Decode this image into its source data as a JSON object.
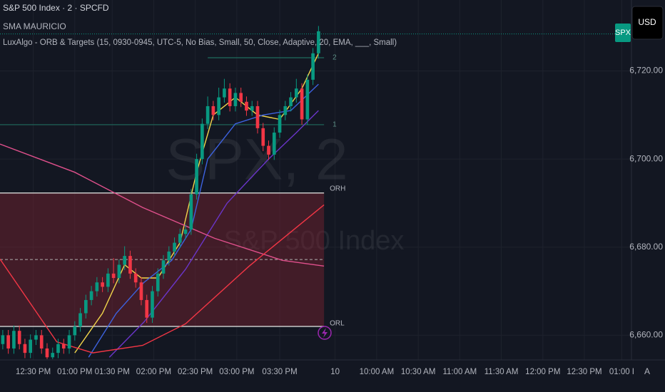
{
  "chart_data": {
    "type": "candlestick",
    "title": "S&P 500 Index · 2 · SPCFD",
    "indicator_legend": [
      "SMA MAURICIO",
      "LuxAlgo - ORB & Targets (15, 0930-0945, UTC-5, No Bias, Small, 50, Close, Adaptive, 20, EMA, ___, Small)"
    ],
    "watermark": "SPX, 2",
    "watermark_subtitle": "S&P 500 Index",
    "symbol_tag": "SPX",
    "currency": "USD",
    "auto_scale": "A",
    "up_color": "#089981",
    "down_color": "#f23645",
    "x": [
      -22,
      -18,
      -14,
      -10,
      -6,
      -2,
      2,
      6,
      10,
      14,
      18,
      22,
      26,
      30,
      34,
      38,
      42,
      46,
      50,
      54,
      58,
      62,
      66,
      70,
      74,
      78,
      82,
      86,
      90,
      94,
      98,
      102,
      106,
      110,
      114,
      118,
      122,
      126,
      130,
      134,
      138,
      142,
      146,
      150,
      154,
      158,
      162,
      166,
      170,
      174,
      178,
      182,
      186,
      190,
      194,
      198,
      202,
      206
    ],
    "ohlc": [
      [
        6658,
        6661.2,
        6656.8,
        6660
      ],
      [
        6660,
        6661.2,
        6655.8,
        6657
      ],
      [
        6657,
        6662.2,
        6655.8,
        6661
      ],
      [
        6661,
        6662.2,
        6656.8,
        6658
      ],
      [
        6658,
        6659.2,
        6654.8,
        6656
      ],
      [
        6656,
        6660.2,
        6654.8,
        6659
      ],
      [
        6659,
        6661.2,
        6657.8,
        6660
      ],
      [
        6660,
        6661.2,
        6655.8,
        6657
      ],
      [
        6657,
        6658.2,
        6654.6,
        6655
      ],
      [
        6655,
        6657.2,
        6654.6,
        6656
      ],
      [
        6656,
        6659.2,
        6654.8,
        6658
      ],
      [
        6658,
        6659.2,
        6655.8,
        6657
      ],
      [
        6657,
        6661.2,
        6655.8,
        6660
      ],
      [
        6660,
        6663.2,
        6658.8,
        6662
      ],
      [
        6662,
        6666.2,
        6660.8,
        6665
      ],
      [
        6665,
        6669.2,
        6663.8,
        6668
      ],
      [
        6668,
        6671.2,
        6666.8,
        6670
      ],
      [
        6670,
        6673.2,
        6668.8,
        6672
      ],
      [
        6672,
        6673.2,
        6669.8,
        6671
      ],
      [
        6671,
        6675.2,
        6669.8,
        6674
      ],
      [
        6674,
        6677.5,
        6671.8,
        6673
      ],
      [
        6673,
        6677.2,
        6671.8,
        6676
      ],
      [
        6676,
        6680.2,
        6674.8,
        6678
      ],
      [
        6678,
        6679.2,
        6672.8,
        6674
      ],
      [
        6674,
        6675.2,
        6670.8,
        6672
      ],
      [
        6672,
        6673.2,
        6666.8,
        6668
      ],
      [
        6668,
        6669.2,
        6662.8,
        6664
      ],
      [
        6664,
        6671.2,
        6662.8,
        6670
      ],
      [
        6670,
        6675.2,
        6668.8,
        6674
      ],
      [
        6674,
        6678.2,
        6672.8,
        6677
      ],
      [
        6677,
        6680.2,
        6675.8,
        6679
      ],
      [
        6679,
        6682.2,
        6677.8,
        6681
      ],
      [
        6681,
        6684.2,
        6679.8,
        6683
      ],
      [
        6683,
        6685.2,
        6681.8,
        6684
      ],
      [
        6684,
        6693.2,
        6682.8,
        6692
      ],
      [
        6692,
        6701.2,
        6690.8,
        6700
      ],
      [
        6700,
        6709.2,
        6698.8,
        6708
      ],
      [
        6708,
        6714.2,
        6706.8,
        6712
      ],
      [
        6712,
        6713.2,
        6708.8,
        6710
      ],
      [
        6710,
        6716.2,
        6708.8,
        6714
      ],
      [
        6714,
        6718.2,
        6712.8,
        6716
      ],
      [
        6716,
        6717.2,
        6710.8,
        6712
      ],
      [
        6712,
        6716.2,
        6710.8,
        6715
      ],
      [
        6715,
        6716.2,
        6711.8,
        6713
      ],
      [
        6713,
        6714.2,
        6709.8,
        6711
      ],
      [
        6711,
        6713.2,
        6709.8,
        6712
      ],
      [
        6712,
        6713.2,
        6705.8,
        6707
      ],
      [
        6707,
        6708.2,
        6701.8,
        6703
      ],
      [
        6703,
        6704.2,
        6699.8,
        6701
      ],
      [
        6701,
        6707.2,
        6699.8,
        6706
      ],
      [
        6706,
        6711.2,
        6704.8,
        6710
      ],
      [
        6710,
        6713.2,
        6708.8,
        6712
      ],
      [
        6712,
        6715.2,
        6710.8,
        6714
      ],
      [
        6714,
        6718.2,
        6712.8,
        6716
      ],
      [
        6716,
        6717.2,
        6707.8,
        6709
      ],
      [
        6709,
        6719.2,
        6707.8,
        6718
      ],
      [
        6718,
        6725.2,
        6716.8,
        6724
      ],
      [
        6724,
        6730.2,
        6722.8,
        6729
      ]
    ],
    "lines": [
      {
        "color": "#f2d64b",
        "x": [
          30,
          50,
          66,
          78,
          90,
          106,
          118,
          130,
          146,
          162,
          178,
          194,
          206
        ],
        "values": [
          6656,
          6665,
          6676,
          6673,
          6673,
          6681,
          6697,
          6710,
          6714,
          6710,
          6709,
          6716,
          6724
        ]
      },
      {
        "color": "#3d62e0",
        "x": [
          40,
          60,
          80,
          100,
          114,
          126,
          146,
          166,
          186,
          206
        ],
        "values": [
          6655,
          6665,
          6672,
          6677,
          6684,
          6700,
          6708,
          6710,
          6711,
          6717
        ]
      },
      {
        "color": "#6a35c9",
        "x": [
          55,
          80,
          110,
          140,
          170,
          190,
          206
        ],
        "values": [
          6655,
          6663,
          6675,
          6690,
          6700,
          6706,
          6711
        ]
      },
      {
        "color": "#e0508c",
        "x": [
          -24,
          30,
          79,
          131,
          180,
          210
        ],
        "values": [
          6703.4,
          6697,
          6689,
          6682,
          6677,
          6675.7
        ]
      },
      {
        "color": "#f23645",
        "x": [
          -24,
          17,
          43,
          79,
          110,
          156,
          210
        ],
        "values": [
          6677.3,
          6658.5,
          6656,
          6657.7,
          6662.6,
          6675.7,
          6689.6
        ]
      }
    ],
    "orb": {
      "x": [
        -24,
        210
      ],
      "high": 6692.3,
      "low": 6662,
      "mid": 6677.2,
      "high_label": "ORH",
      "low_label": "ORL"
    },
    "targets": [
      {
        "value": 6707.8,
        "label": "1",
        "x": [
          -24,
          210
        ]
      },
      {
        "value": 6723,
        "label": "2",
        "x": [
          126,
          210
        ]
      }
    ],
    "last_price": 6728.4,
    "xlim": [
      -24,
      432
    ],
    "ylim": [
      6654.4,
      6736.1
    ],
    "xticks": [
      {
        "value": 0,
        "label": "12:30 PM"
      },
      {
        "value": 30,
        "label": "01:00 PM"
      },
      {
        "value": 57,
        "label": "01:30 PM"
      },
      {
        "value": 87,
        "label": "02:00 PM"
      },
      {
        "value": 117,
        "label": "02:30 PM"
      },
      {
        "value": 147,
        "label": "03:00 PM"
      },
      {
        "value": 178,
        "label": "03:30 PM"
      },
      {
        "value": 218,
        "label": "10"
      },
      {
        "value": 248,
        "label": "10:00 AM"
      },
      {
        "value": 278,
        "label": "10:30 AM"
      },
      {
        "value": 308,
        "label": "11:00 AM"
      },
      {
        "value": 338,
        "label": "11:30 AM"
      },
      {
        "value": 368,
        "label": "12:00 PM"
      },
      {
        "value": 398,
        "label": "12:30 PM"
      },
      {
        "value": 425,
        "label": "01:00 I"
      }
    ],
    "yticks": [
      {
        "value": 6660,
        "label": "6,660.00"
      },
      {
        "value": 6680,
        "label": "6,680.00"
      },
      {
        "value": 6700,
        "label": "6,700.00"
      },
      {
        "value": 6720,
        "label": "6,720.00"
      }
    ],
    "grid": true
  }
}
